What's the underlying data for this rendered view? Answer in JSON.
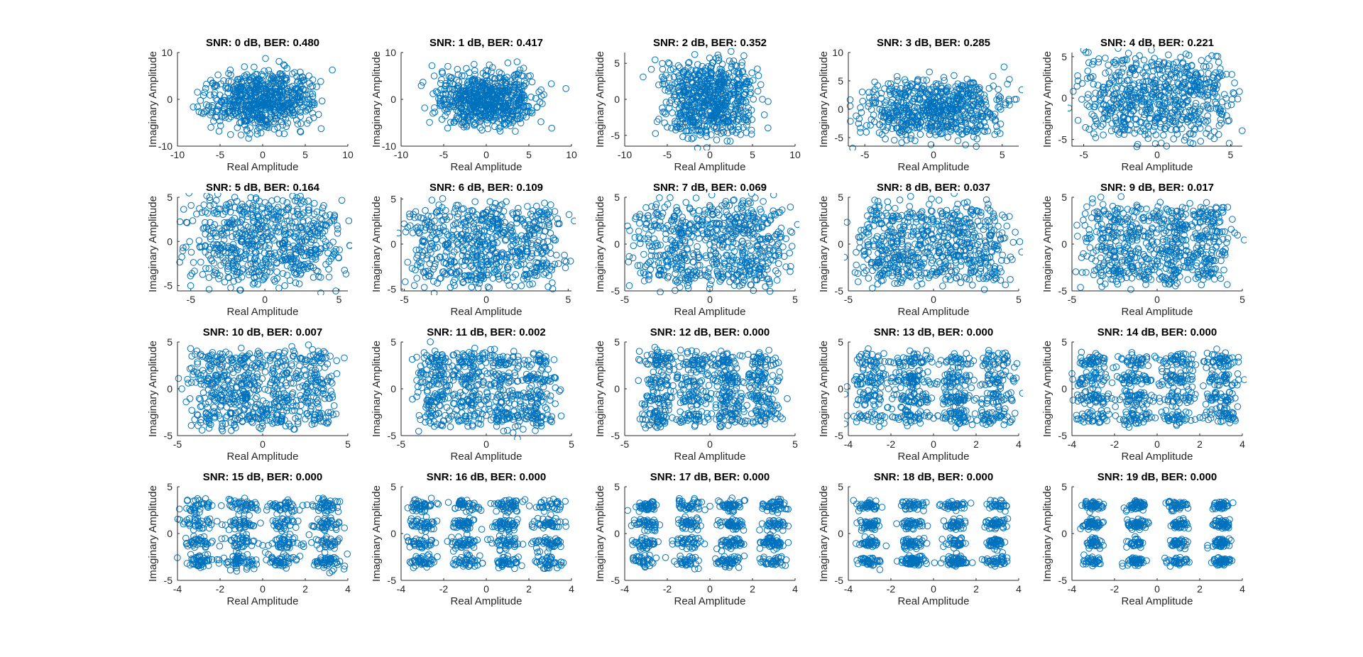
{
  "chart_data": [
    {
      "type": "scatter",
      "title": "SNR: 0 dB, BER: 0.480",
      "xlabel": "Real Amplitude",
      "ylabel": "Imaginary Amplitude",
      "xlim": [
        -10,
        10
      ],
      "ylim": [
        -10,
        10
      ],
      "xticks": [
        -10,
        -5,
        0,
        5,
        10
      ],
      "yticks": [
        -10,
        0,
        10
      ],
      "grid": false,
      "series": [
        {
          "constellation": "16-QAM",
          "levels": [
            -3,
            -1,
            1,
            3
          ],
          "noise_std": 2.12
        }
      ]
    },
    {
      "type": "scatter",
      "title": "SNR: 1 dB, BER: 0.417",
      "xlabel": "Real Amplitude",
      "ylabel": "Imaginary Amplitude",
      "xlim": [
        -10,
        10
      ],
      "ylim": [
        -10,
        10
      ],
      "xticks": [
        -10,
        -5,
        0,
        5,
        10
      ],
      "yticks": [
        -10,
        0,
        10
      ],
      "grid": false,
      "series": [
        {
          "constellation": "16-QAM",
          "levels": [
            -3,
            -1,
            1,
            3
          ],
          "noise_std": 1.88
        }
      ]
    },
    {
      "type": "scatter",
      "title": "SNR: 2 dB, BER: 0.352",
      "xlabel": "Real Amplitude",
      "ylabel": "Imaginary Amplitude",
      "xlim": [
        -10,
        10
      ],
      "ylim": [
        -6.5,
        6.5
      ],
      "xticks": [
        -10,
        -5,
        0,
        5,
        10
      ],
      "yticks": [
        -5,
        0,
        5
      ],
      "grid": false,
      "series": [
        {
          "constellation": "16-QAM",
          "levels": [
            -3,
            -1,
            1,
            3
          ],
          "noise_std": 1.68
        }
      ]
    },
    {
      "type": "scatter",
      "title": "SNR: 3 dB, BER: 0.285",
      "xlabel": "Real Amplitude",
      "ylabel": "Imaginary Amplitude",
      "xlim": [
        -6.2,
        6.2
      ],
      "ylim": [
        -6.5,
        10
      ],
      "xticks": [
        -5,
        0,
        5
      ],
      "yticks": [
        -5,
        0,
        5,
        10
      ],
      "grid": false,
      "series": [
        {
          "constellation": "16-QAM",
          "levels": [
            -3,
            -1,
            1,
            3
          ],
          "noise_std": 1.5
        }
      ]
    },
    {
      "type": "scatter",
      "title": "SNR: 4 dB, BER: 0.221",
      "xlabel": "Real Amplitude",
      "ylabel": "Imaginary Amplitude",
      "xlim": [
        -5.8,
        5.8
      ],
      "ylim": [
        -5.8,
        5.5
      ],
      "xticks": [
        -5,
        0,
        5
      ],
      "yticks": [
        -5,
        0,
        5
      ],
      "grid": false,
      "series": [
        {
          "constellation": "16-QAM",
          "levels": [
            -3,
            -1,
            1,
            3
          ],
          "noise_std": 1.34
        }
      ]
    },
    {
      "type": "scatter",
      "title": "SNR: 5 dB, BER: 0.164",
      "xlabel": "Real Amplitude",
      "ylabel": "Imaginary Amplitude",
      "xlim": [
        -5.9,
        5.6
      ],
      "ylim": [
        -5.6,
        5
      ],
      "xticks": [
        -5,
        0,
        5
      ],
      "yticks": [
        -5,
        0,
        5
      ],
      "grid": false,
      "series": [
        {
          "constellation": "16-QAM",
          "levels": [
            -3,
            -1,
            1,
            3
          ],
          "noise_std": 1.19
        }
      ]
    },
    {
      "type": "scatter",
      "title": "SNR: 6 dB, BER: 0.109",
      "xlabel": "Real Amplitude",
      "ylabel": "Imaginary Amplitude",
      "xlim": [
        -5.2,
        5.2
      ],
      "ylim": [
        -5.2,
        5.2
      ],
      "xticks": [
        -5,
        0,
        5
      ],
      "yticks": [
        -5,
        0,
        5
      ],
      "grid": false,
      "series": [
        {
          "constellation": "16-QAM",
          "levels": [
            -3,
            -1,
            1,
            3
          ],
          "noise_std": 1.06
        }
      ]
    },
    {
      "type": "scatter",
      "title": "SNR: 7 dB, BER: 0.069",
      "xlabel": "Real Amplitude",
      "ylabel": "Imaginary Amplitude",
      "xlim": [
        -5,
        5
      ],
      "ylim": [
        -5,
        5
      ],
      "xticks": [
        -5,
        0,
        5
      ],
      "yticks": [
        -5,
        0,
        5
      ],
      "grid": false,
      "series": [
        {
          "constellation": "16-QAM",
          "levels": [
            -3,
            -1,
            1,
            3
          ],
          "noise_std": 0.95
        }
      ]
    },
    {
      "type": "scatter",
      "title": "SNR: 8 dB, BER: 0.037",
      "xlabel": "Real Amplitude",
      "ylabel": "Imaginary Amplitude",
      "xlim": [
        -5,
        5
      ],
      "ylim": [
        -5,
        5
      ],
      "xticks": [
        -5,
        0,
        5
      ],
      "yticks": [
        -5,
        0,
        5
      ],
      "grid": false,
      "series": [
        {
          "constellation": "16-QAM",
          "levels": [
            -3,
            -1,
            1,
            3
          ],
          "noise_std": 0.84
        }
      ]
    },
    {
      "type": "scatter",
      "title": "SNR: 9 dB, BER: 0.017",
      "xlabel": "Real Amplitude",
      "ylabel": "Imaginary Amplitude",
      "xlim": [
        -5,
        5
      ],
      "ylim": [
        -5,
        5
      ],
      "xticks": [
        -5,
        0,
        5
      ],
      "yticks": [
        -5,
        0,
        5
      ],
      "grid": false,
      "series": [
        {
          "constellation": "16-QAM",
          "levels": [
            -3,
            -1,
            1,
            3
          ],
          "noise_std": 0.75
        }
      ]
    },
    {
      "type": "scatter",
      "title": "SNR: 10 dB, BER: 0.007",
      "xlabel": "Real Amplitude",
      "ylabel": "Imaginary Amplitude",
      "xlim": [
        -5,
        5
      ],
      "ylim": [
        -5,
        5
      ],
      "xticks": [
        -5,
        0,
        5
      ],
      "yticks": [
        -5,
        0,
        5
      ],
      "grid": false,
      "series": [
        {
          "constellation": "16-QAM",
          "levels": [
            -3,
            -1,
            1,
            3
          ],
          "noise_std": 0.67
        }
      ]
    },
    {
      "type": "scatter",
      "title": "SNR: 11 dB, BER: 0.002",
      "xlabel": "Real Amplitude",
      "ylabel": "Imaginary Amplitude",
      "xlim": [
        -5,
        5
      ],
      "ylim": [
        -5,
        5
      ],
      "xticks": [
        -5,
        0,
        5
      ],
      "yticks": [
        -5,
        0,
        5
      ],
      "grid": false,
      "series": [
        {
          "constellation": "16-QAM",
          "levels": [
            -3,
            -1,
            1,
            3
          ],
          "noise_std": 0.6
        }
      ]
    },
    {
      "type": "scatter",
      "title": "SNR: 12 dB, BER: 0.000",
      "xlabel": "Real Amplitude",
      "ylabel": "Imaginary Amplitude",
      "xlim": [
        -5,
        5
      ],
      "ylim": [
        -5,
        5
      ],
      "xticks": [
        -5,
        0,
        5
      ],
      "yticks": [
        -5,
        0,
        5
      ],
      "grid": false,
      "series": [
        {
          "constellation": "16-QAM",
          "levels": [
            -3,
            -1,
            1,
            3
          ],
          "noise_std": 0.53
        }
      ]
    },
    {
      "type": "scatter",
      "title": "SNR: 13 dB, BER: 0.000",
      "xlabel": "Real Amplitude",
      "ylabel": "Imaginary Amplitude",
      "xlim": [
        -4,
        4
      ],
      "ylim": [
        -5,
        5
      ],
      "xticks": [
        -4,
        -2,
        0,
        2,
        4
      ],
      "yticks": [
        -5,
        0,
        5
      ],
      "grid": false,
      "series": [
        {
          "constellation": "16-QAM",
          "levels": [
            -3,
            -1,
            1,
            3
          ],
          "noise_std": 0.47
        }
      ]
    },
    {
      "type": "scatter",
      "title": "SNR: 14 dB, BER: 0.000",
      "xlabel": "Real Amplitude",
      "ylabel": "Imaginary Amplitude",
      "xlim": [
        -4,
        4
      ],
      "ylim": [
        -5,
        5
      ],
      "xticks": [
        -4,
        -2,
        0,
        2,
        4
      ],
      "yticks": [
        -5,
        0,
        5
      ],
      "grid": false,
      "series": [
        {
          "constellation": "16-QAM",
          "levels": [
            -3,
            -1,
            1,
            3
          ],
          "noise_std": 0.42
        }
      ]
    },
    {
      "type": "scatter",
      "title": "SNR: 15 dB, BER: 0.000",
      "xlabel": "Real Amplitude",
      "ylabel": "Imaginary Amplitude",
      "xlim": [
        -4,
        4
      ],
      "ylim": [
        -5,
        5
      ],
      "xticks": [
        -4,
        -2,
        0,
        2,
        4
      ],
      "yticks": [
        -5,
        0,
        5
      ],
      "grid": false,
      "series": [
        {
          "constellation": "16-QAM",
          "levels": [
            -3,
            -1,
            1,
            3
          ],
          "noise_std": 0.38
        }
      ]
    },
    {
      "type": "scatter",
      "title": "SNR: 16 dB, BER: 0.000",
      "xlabel": "Real Amplitude",
      "ylabel": "Imaginary Amplitude",
      "xlim": [
        -4,
        4
      ],
      "ylim": [
        -5,
        5
      ],
      "xticks": [
        -4,
        -2,
        0,
        2,
        4
      ],
      "yticks": [
        -5,
        0,
        5
      ],
      "grid": false,
      "series": [
        {
          "constellation": "16-QAM",
          "levels": [
            -3,
            -1,
            1,
            3
          ],
          "noise_std": 0.34
        }
      ]
    },
    {
      "type": "scatter",
      "title": "SNR: 17 dB, BER: 0.000",
      "xlabel": "Real Amplitude",
      "ylabel": "Imaginary Amplitude",
      "xlim": [
        -4,
        4
      ],
      "ylim": [
        -5,
        5
      ],
      "xticks": [
        -4,
        -2,
        0,
        2,
        4
      ],
      "yticks": [
        -5,
        0,
        5
      ],
      "grid": false,
      "series": [
        {
          "constellation": "16-QAM",
          "levels": [
            -3,
            -1,
            1,
            3
          ],
          "noise_std": 0.3
        }
      ]
    },
    {
      "type": "scatter",
      "title": "SNR: 18 dB, BER: 0.000",
      "xlabel": "Real Amplitude",
      "ylabel": "Imaginary Amplitude",
      "xlim": [
        -4,
        4
      ],
      "ylim": [
        -5,
        5
      ],
      "xticks": [
        -4,
        -2,
        0,
        2,
        4
      ],
      "yticks": [
        -5,
        0,
        5
      ],
      "grid": false,
      "series": [
        {
          "constellation": "16-QAM",
          "levels": [
            -3,
            -1,
            1,
            3
          ],
          "noise_std": 0.27
        }
      ]
    },
    {
      "type": "scatter",
      "title": "SNR: 19 dB, BER: 0.000",
      "xlabel": "Real Amplitude",
      "ylabel": "Imaginary Amplitude",
      "xlim": [
        -4,
        4
      ],
      "ylim": [
        -5,
        5
      ],
      "xticks": [
        -4,
        -2,
        0,
        2,
        4
      ],
      "yticks": [
        -5,
        0,
        5
      ],
      "grid": false,
      "series": [
        {
          "constellation": "16-QAM",
          "levels": [
            -3,
            -1,
            1,
            3
          ],
          "noise_std": 0.24
        }
      ]
    }
  ],
  "colors": {
    "marker": "#0072BD",
    "axis": "#262626",
    "title": "#000000",
    "background": "#ffffff"
  }
}
